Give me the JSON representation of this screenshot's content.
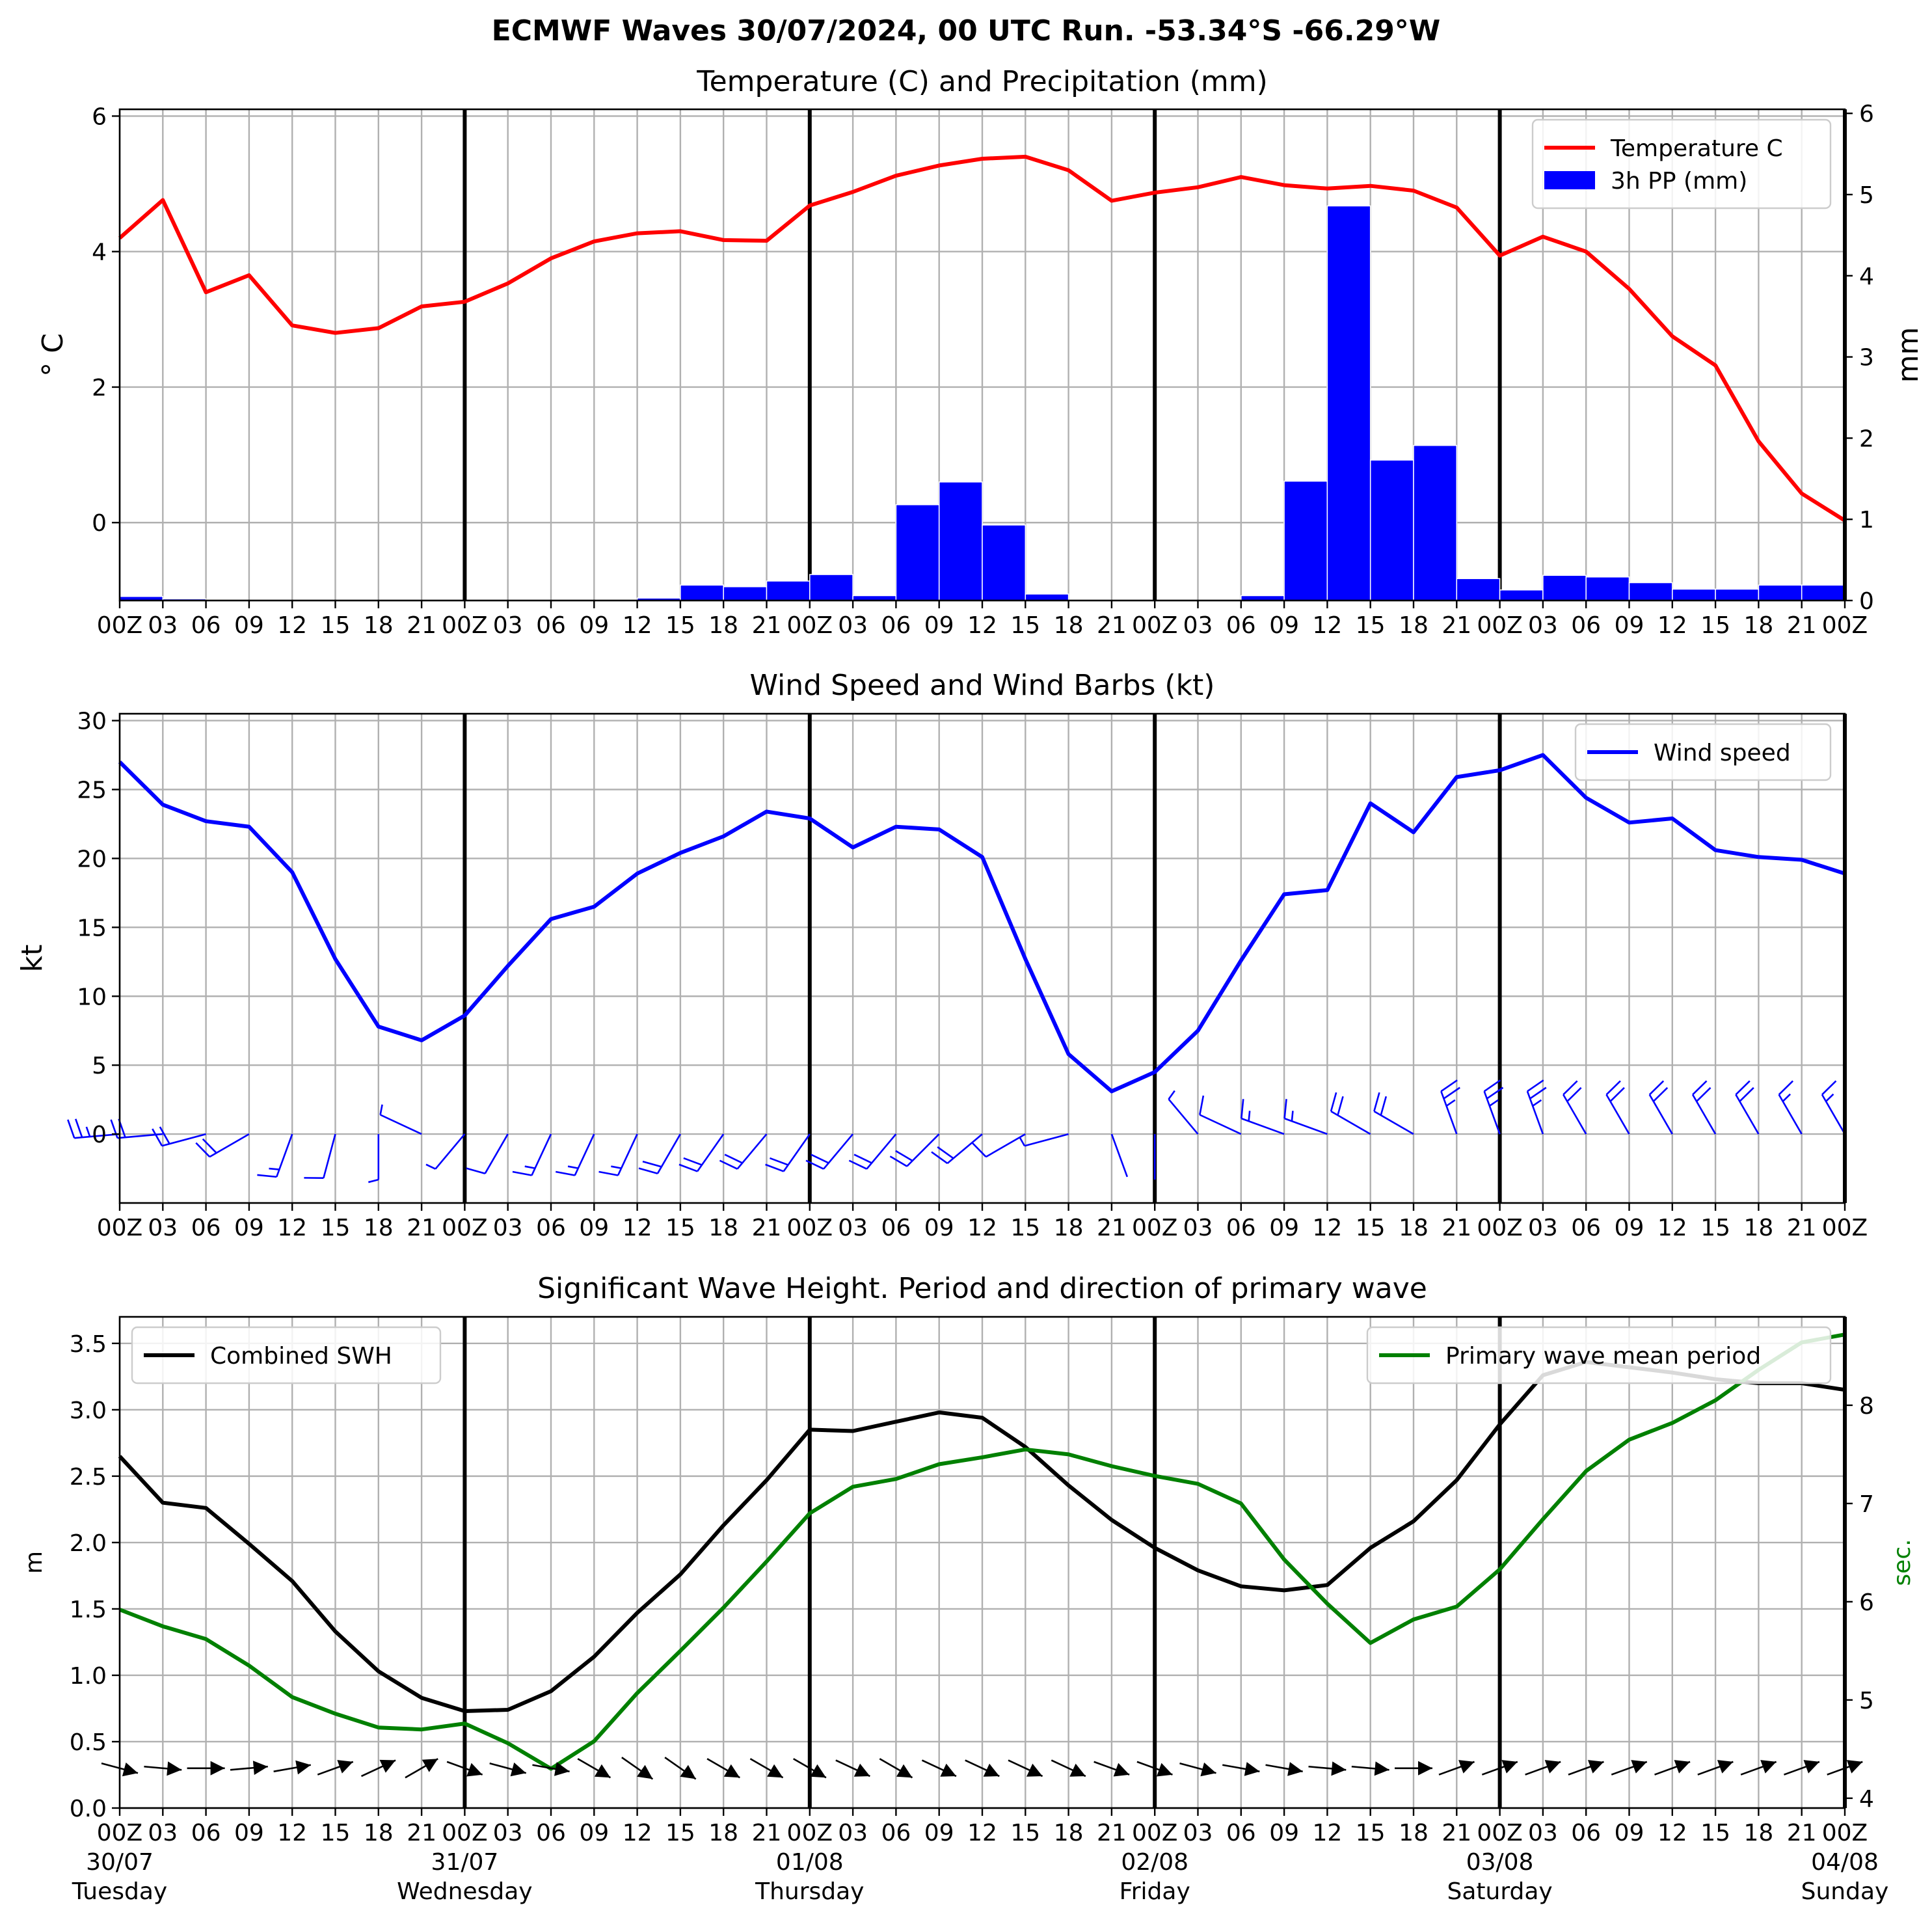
{
  "figure_title": "ECMWF Waves 30/07/2024, 00 UTC Run. -53.34°S -66.29°W",
  "x_tick_labels": [
    "00Z",
    "03",
    "06",
    "09",
    "12",
    "15",
    "18",
    "21",
    "00Z",
    "03",
    "06",
    "09",
    "12",
    "15",
    "18",
    "21",
    "00Z",
    "03",
    "06",
    "09",
    "12",
    "15",
    "18",
    "21",
    "00Z",
    "03",
    "06",
    "09",
    "12",
    "15",
    "18",
    "21",
    "00Z",
    "03",
    "06",
    "09",
    "12",
    "15",
    "18",
    "21",
    "00Z"
  ],
  "day_labels": [
    {
      "date": "30/07",
      "weekday": "Tuesday"
    },
    {
      "date": "31/07",
      "weekday": "Wednesday"
    },
    {
      "date": "01/08",
      "weekday": "Thursday"
    },
    {
      "date": "02/08",
      "weekday": "Friday"
    },
    {
      "date": "03/08",
      "weekday": "Saturday"
    },
    {
      "date": "04/08",
      "weekday": "Sunday"
    }
  ],
  "colors": {
    "temperature": "#ff0000",
    "precip": "#0000ff",
    "wind": "#0000ff",
    "swh": "#000000",
    "period": "#008000",
    "arrows": "#000000"
  },
  "chart_data": [
    {
      "type": "line+bar",
      "title": "Temperature (C) and Precipitation (mm)",
      "ylabel": "° C",
      "ylabel_right": "mm",
      "x_hours": [
        0,
        3,
        6,
        9,
        12,
        15,
        18,
        21,
        24,
        27,
        30,
        33,
        36,
        39,
        42,
        45,
        48,
        51,
        54,
        57,
        60,
        63,
        66,
        69,
        72,
        75,
        78,
        81,
        84,
        87,
        90,
        93,
        96,
        99,
        102,
        105,
        108,
        111,
        114,
        117,
        120
      ],
      "ylim": [
        -1.15,
        6.1
      ],
      "ylim_right": [
        0,
        6.05
      ],
      "yticks": [
        0,
        2,
        4,
        6
      ],
      "yticks_right": [
        0,
        1,
        2,
        3,
        4,
        5,
        6
      ],
      "legend_position": "top-right",
      "grid": true,
      "series": [
        {
          "name": "Temperature C",
          "kind": "line",
          "values": [
            4.2,
            4.76,
            3.4,
            3.65,
            2.91,
            2.8,
            2.87,
            3.19,
            3.26,
            3.53,
            3.9,
            4.15,
            4.27,
            4.3,
            4.17,
            4.16,
            4.68,
            4.88,
            5.12,
            5.27,
            5.37,
            5.4,
            5.2,
            4.75,
            4.87,
            4.95,
            5.1,
            4.98,
            4.93,
            4.97,
            4.9,
            4.65,
            3.94,
            4.22,
            4.0,
            3.45,
            2.75,
            2.32,
            1.2,
            0.43,
            0.03
          ]
        },
        {
          "name": "3h PP (mm)",
          "kind": "bar",
          "values": [
            0.05,
            0.02,
            0,
            0,
            0,
            0,
            0,
            0,
            0,
            0,
            0,
            0,
            0.03,
            0.19,
            0.17,
            0.24,
            0.32,
            0.06,
            1.18,
            1.46,
            0.93,
            0.08,
            0,
            0,
            0,
            0,
            0.06,
            1.47,
            4.86,
            1.73,
            1.91,
            0.27,
            0.13,
            0.31,
            0.29,
            0.22,
            0.14,
            0.14,
            0.19,
            0.19
          ]
        }
      ]
    },
    {
      "type": "line",
      "title": "Wind Speed and Wind Barbs (kt)",
      "ylabel": "kt",
      "x_hours": [
        0,
        3,
        6,
        9,
        12,
        15,
        18,
        21,
        24,
        27,
        30,
        33,
        36,
        39,
        42,
        45,
        48,
        51,
        54,
        57,
        60,
        63,
        66,
        69,
        72,
        75,
        78,
        81,
        84,
        87,
        90,
        93,
        96,
        99,
        102,
        105,
        108,
        111,
        114,
        117,
        120
      ],
      "ylim": [
        -5,
        30.5
      ],
      "yticks": [
        0,
        5,
        10,
        15,
        20,
        25,
        30
      ],
      "legend_position": "top-right",
      "grid": true,
      "series": [
        {
          "name": "Wind speed",
          "values": [
            27,
            23.9,
            22.7,
            22.3,
            19,
            12.7,
            7.8,
            6.8,
            8.6,
            12.2,
            15.6,
            16.5,
            18.9,
            20.4,
            21.6,
            23.4,
            22.9,
            20.8,
            22.3,
            22.1,
            20.1,
            12.7,
            5.8,
            3.1,
            4.5,
            7.5,
            12.6,
            17.4,
            17.7,
            24,
            21.9,
            25.9,
            26.4,
            27.5,
            24.4,
            22.6,
            22.9,
            20.6,
            20.1,
            19.9,
            18.9
          ]
        },
        {
          "name": "wind barb direction (deg)",
          "values": [
            265,
            265,
            255,
            240,
            200,
            195,
            180,
            295,
            220,
            210,
            205,
            205,
            205,
            210,
            215,
            220,
            215,
            220,
            220,
            225,
            230,
            240,
            255,
            160,
            180,
            320,
            295,
            290,
            290,
            300,
            300,
            340,
            340,
            340,
            330,
            330,
            330,
            330,
            330,
            330,
            330
          ]
        }
      ]
    },
    {
      "type": "line",
      "title": "Significant Wave Height. Period and direction of primary wave",
      "ylabel": "m",
      "ylabel_right": "sec.",
      "x_hours": [
        0,
        3,
        6,
        9,
        12,
        15,
        18,
        21,
        24,
        27,
        30,
        33,
        36,
        39,
        42,
        45,
        48,
        51,
        54,
        57,
        60,
        63,
        66,
        69,
        72,
        75,
        78,
        81,
        84,
        87,
        90,
        93,
        96,
        99,
        102,
        105,
        108,
        111,
        114,
        117,
        120
      ],
      "ylim": [
        0,
        3.7
      ],
      "ylim_right": [
        3.9,
        8.9
      ],
      "yticks": [
        0.0,
        0.5,
        1.0,
        1.5,
        2.0,
        2.5,
        3.0,
        3.5
      ],
      "yticks_right": [
        4,
        5,
        6,
        7,
        8
      ],
      "grid": true,
      "series": [
        {
          "name": "Combined SWH",
          "axis": "left",
          "legend_position": "top-left",
          "values": [
            2.65,
            2.3,
            2.26,
            1.99,
            1.71,
            1.33,
            1.03,
            0.83,
            0.73,
            0.74,
            0.88,
            1.14,
            1.47,
            1.76,
            2.13,
            2.47,
            2.85,
            2.84,
            2.91,
            2.98,
            2.94,
            2.72,
            2.43,
            2.17,
            1.96,
            1.79,
            1.67,
            1.64,
            1.68,
            1.96,
            2.16,
            2.47,
            2.89,
            3.26,
            3.36,
            3.32,
            3.28,
            3.23,
            3.2,
            3.2,
            3.15
          ]
        },
        {
          "name": "Primary wave mean period",
          "axis": "right",
          "legend_position": "top-right",
          "values": [
            5.92,
            5.75,
            5.62,
            5.35,
            5.03,
            4.86,
            4.72,
            4.7,
            4.76,
            4.56,
            4.3,
            4.58,
            5.07,
            5.5,
            5.94,
            6.41,
            6.9,
            7.17,
            7.25,
            7.4,
            7.47,
            7.55,
            7.5,
            7.38,
            7.28,
            7.2,
            7.0,
            6.43,
            5.98,
            5.58,
            5.82,
            5.95,
            6.33,
            6.84,
            7.33,
            7.65,
            7.82,
            8.05,
            8.36,
            8.64,
            8.72
          ]
        },
        {
          "name": "primary wave direction (deg)",
          "kind": "arrows",
          "values": [
            285,
            275,
            270,
            265,
            260,
            250,
            245,
            240,
            290,
            285,
            280,
            300,
            305,
            305,
            300,
            300,
            300,
            295,
            300,
            295,
            295,
            295,
            295,
            290,
            290,
            285,
            280,
            280,
            275,
            275,
            270,
            250,
            250,
            250,
            250,
            250,
            250,
            250,
            250,
            250,
            250
          ]
        }
      ]
    }
  ]
}
